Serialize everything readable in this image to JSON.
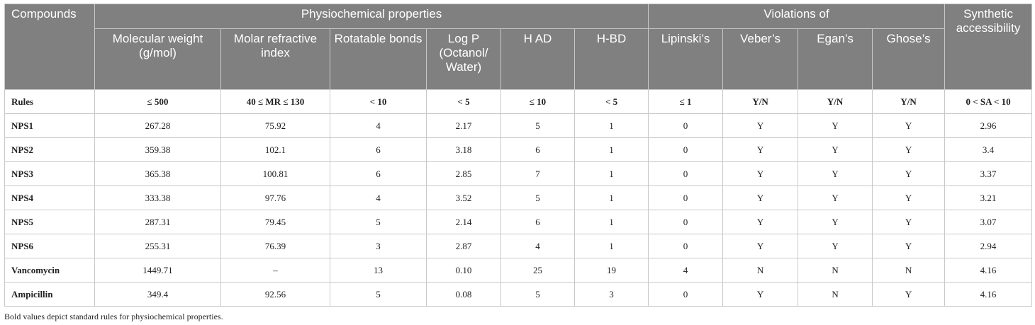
{
  "table": {
    "group_headers": {
      "compounds": "Compounds",
      "physio": "Physiochemical properties",
      "violations": "Violations of",
      "synthetic": "Synthetic accessibility"
    },
    "columns": [
      "Molecular weight (g/mol)",
      "Molar refractive index",
      "Rotatable bonds",
      "Log P (Octanol/ Water)",
      "H AD",
      "H-BD",
      "Lipinski’s",
      "Veber’s",
      "Egan’s",
      "Ghose’s"
    ],
    "rows": [
      [
        "Rules",
        "≤ 500",
        "40 ≤ MR ≤ 130",
        "< 10",
        "< 5",
        "≤ 10",
        "< 5",
        "≤ 1",
        "Y/N",
        "Y/N",
        "Y/N",
        "0 < SA < 10"
      ],
      [
        "NPS1",
        "267.28",
        "75.92",
        "4",
        "2.17",
        "5",
        "1",
        "0",
        "Y",
        "Y",
        "Y",
        "2.96"
      ],
      [
        "NPS2",
        "359.38",
        "102.1",
        "6",
        "3.18",
        "6",
        "1",
        "0",
        "Y",
        "Y",
        "Y",
        "3.4"
      ],
      [
        "NPS3",
        "365.38",
        "100.81",
        "6",
        "2.85",
        "7",
        "1",
        "0",
        "Y",
        "Y",
        "Y",
        "3.37"
      ],
      [
        "NPS4",
        "333.38",
        "97.76",
        "4",
        "3.52",
        "5",
        "1",
        "0",
        "Y",
        "Y",
        "Y",
        "3.21"
      ],
      [
        "NPS5",
        "287.31",
        "79.45",
        "5",
        "2.14",
        "6",
        "1",
        "0",
        "Y",
        "Y",
        "Y",
        "3.07"
      ],
      [
        "NPS6",
        "255.31",
        "76.39",
        "3",
        "2.87",
        "4",
        "1",
        "0",
        "Y",
        "Y",
        "Y",
        "2.94"
      ],
      [
        "Vancomycin",
        "1449.71",
        "–",
        "13",
        "0.10",
        "25",
        "19",
        "4",
        "N",
        "N",
        "N",
        "4.16"
      ],
      [
        "Ampicillin",
        "349.4",
        "92.56",
        "5",
        "0.08",
        "5",
        "3",
        "0",
        "Y",
        "N",
        "Y",
        "4.16"
      ]
    ]
  },
  "footnote": "Bold values depict standard rules for physiochemical properties."
}
